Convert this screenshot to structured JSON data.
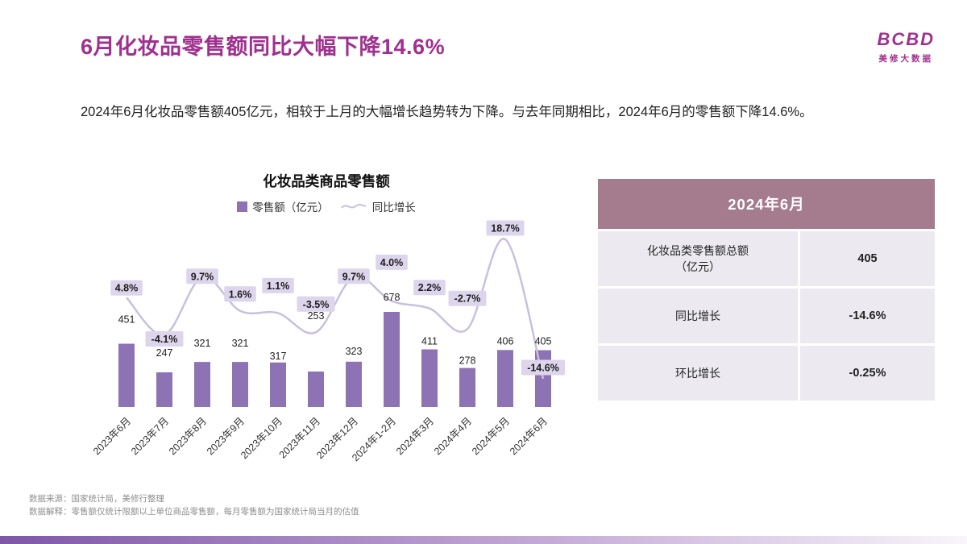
{
  "page": {
    "title": "6月化妆品零售额同比大幅下降14.6%",
    "logo": {
      "text": "BCBD",
      "subtext": "美修大数据"
    },
    "description": "2024年6月化妆品零售额405亿元，相较于上月的大幅增长趋势转为下降。与去年同期相比，2024年6月的零售额下降14.6%。",
    "footnotes": [
      "数据来源：国家统计局，美修行整理",
      "数据解释：零售额仅统计限额以上单位商品零售额，每月零售额为国家统计局当月的估值"
    ]
  },
  "chart_data": {
    "type": "bar",
    "title": "化妆品类商品零售额",
    "legend": [
      "零售额（亿元）",
      "同比增长"
    ],
    "legend_position": "top",
    "grid": false,
    "categories": [
      "2023年6月",
      "2023年7月",
      "2023年8月",
      "2023年9月",
      "2023年10月",
      "2023年11月",
      "2023年12月",
      "2024年1-2月",
      "2024年3月",
      "2024年4月",
      "2024年5月",
      "2024年6月"
    ],
    "series": [
      {
        "name": "零售额（亿元）",
        "type": "bar",
        "values": [
          451,
          247,
          321,
          321,
          317,
          253,
          323,
          678,
          411,
          278,
          406,
          405
        ]
      },
      {
        "name": "同比增长",
        "type": "line",
        "values": [
          4.8,
          -4.1,
          9.7,
          1.6,
          1.1,
          -3.5,
          9.7,
          4.0,
          2.2,
          -2.7,
          18.7,
          -14.6
        ],
        "labels": [
          "4.8%",
          "-4.1%",
          "9.7%",
          "1.6%",
          "1.1%",
          "-3.5%",
          "9.7%",
          "4.0%",
          "2.2%",
          "-2.7%",
          "18.7%",
          "-14.6%"
        ]
      }
    ],
    "colors": {
      "bar": "#8d72b4",
      "line": "#c9c0dd",
      "chip_bg": "#ddd5ec"
    }
  },
  "summary_table": {
    "header": "2024年6月",
    "rows": [
      {
        "label": "化妆品类零售额总额",
        "label2": "（亿元）",
        "value": "405"
      },
      {
        "label": "同比增长",
        "label2": "",
        "value": "-14.6%"
      },
      {
        "label": "环比增长",
        "label2": "",
        "value": "-0.25%"
      }
    ]
  },
  "theme": {
    "accent": "#a0308f",
    "table_header_bg": "#a57b8e",
    "table_row_bg": "#eceaf0",
    "grad_from": "#7e57a7",
    "grad_mid": "#c2a8d4",
    "grad_to": "#f9f5fb"
  }
}
